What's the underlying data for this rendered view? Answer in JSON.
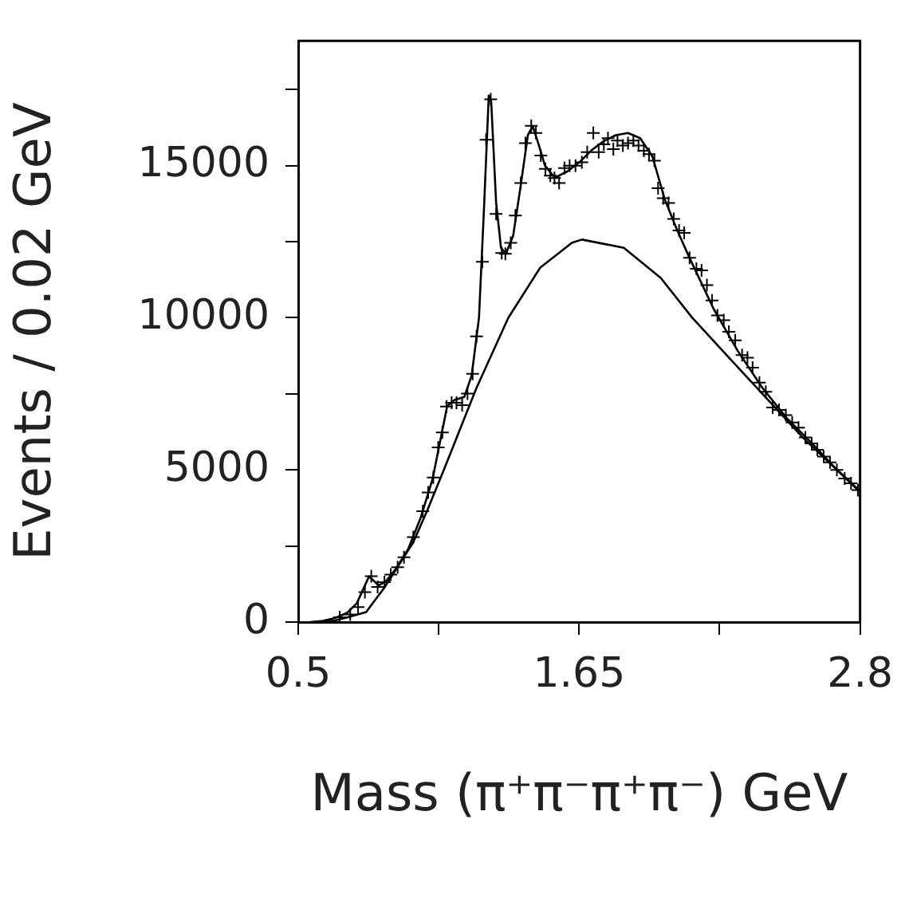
{
  "chart_data": {
    "type": "line",
    "xlabel": "Mass (π⁺π⁻π⁺π⁻) GeV",
    "ylabel": "Events / 0.02 GeV",
    "xlim": [
      0.5,
      2.8
    ],
    "ylim": [
      0,
      19100
    ],
    "xticks": [
      0.5,
      {
        "value": 1.075,
        "label": null
      },
      1.65,
      {
        "value": 2.225,
        "label": null
      },
      2.8
    ],
    "yticks": [
      0,
      {
        "value": 2500,
        "label": null
      },
      5000,
      {
        "value": 7500,
        "label": null
      },
      10000,
      {
        "value": 12500,
        "label": null
      },
      15000,
      {
        "value": 17500,
        "label": null
      }
    ],
    "grid": false,
    "legend": false,
    "series": [
      {
        "type": "scatter",
        "marker": "cross",
        "color": "#000000",
        "x": [
          0.67,
          0.713,
          0.745,
          0.773,
          0.799,
          0.825,
          0.853,
          0.879,
          0.907,
          0.933,
          0.971,
          1.01,
          1.032,
          1.053,
          1.073,
          1.09,
          1.107,
          1.128,
          1.148,
          1.171,
          1.193,
          1.214,
          1.23,
          1.254,
          1.269,
          1.288,
          1.31,
          1.333,
          1.348,
          1.37,
          1.389,
          1.411,
          1.43,
          1.454,
          1.473,
          1.493,
          1.512,
          1.532,
          1.549,
          1.568,
          1.59,
          1.611,
          1.635,
          1.661,
          1.683,
          1.708,
          1.73,
          1.751,
          1.768,
          1.79,
          1.807,
          1.829,
          1.85,
          1.872,
          1.893,
          1.915,
          1.936,
          1.958,
          1.973,
          1.994,
          2.016,
          2.037,
          2.059,
          2.08,
          2.102,
          2.13,
          2.151,
          2.173,
          2.194,
          2.216,
          2.242,
          2.263,
          2.289,
          2.317,
          2.339,
          2.36,
          2.388,
          2.414,
          2.442,
          2.468,
          2.496,
          2.522,
          2.548,
          2.576,
          2.602,
          2.625,
          2.651,
          2.677,
          2.705,
          2.737,
          2.763,
          2.791
        ],
        "values": [
          160,
          250,
          490,
          980,
          1510,
          1150,
          1310,
          1560,
          1800,
          2130,
          2790,
          3640,
          4260,
          4750,
          5740,
          6230,
          7080,
          7210,
          7210,
          7130,
          7510,
          8160,
          9390,
          11840,
          15850,
          17180,
          13410,
          12130,
          12100,
          12460,
          13360,
          14430,
          15740,
          16310,
          16070,
          15330,
          14890,
          14670,
          14590,
          14430,
          14920,
          15000,
          15000,
          15110,
          15440,
          16070,
          15440,
          15700,
          15900,
          15540,
          15820,
          15660,
          15740,
          15820,
          15660,
          15490,
          15380,
          15160,
          14260,
          13930,
          13770,
          13250,
          12870,
          12790,
          11970,
          11610,
          11560,
          11070,
          10570,
          10080,
          9920,
          9540,
          9260,
          8770,
          8690,
          8360,
          7870,
          7570,
          7050,
          6970,
          6800,
          6560,
          6390,
          6070,
          5870,
          5660,
          5440,
          5250,
          5000,
          4720,
          4560,
          4340
        ]
      },
      {
        "type": "line",
        "color": "#000000",
        "x": [
          0.55,
          0.6,
          0.65,
          0.7,
          0.74,
          0.77,
          0.79,
          0.81,
          0.83,
          0.86,
          0.9,
          0.95,
          1.0,
          1.05,
          1.09,
          1.11,
          1.14,
          1.18,
          1.21,
          1.24,
          1.26,
          1.28,
          1.29,
          1.31,
          1.33,
          1.35,
          1.38,
          1.41,
          1.44,
          1.46,
          1.48,
          1.51,
          1.55,
          1.6,
          1.65,
          1.7,
          1.75,
          1.8,
          1.85,
          1.9,
          1.95,
          2.0,
          2.05,
          2.1,
          2.2,
          2.3,
          2.4,
          2.5,
          2.6,
          2.7,
          2.8
        ],
        "values": [
          0,
          40,
          130,
          300,
          620,
          1150,
          1500,
          1350,
          1200,
          1350,
          1750,
          2400,
          3400,
          4700,
          6300,
          7100,
          7300,
          7400,
          8100,
          10000,
          13500,
          17300,
          17100,
          13800,
          12300,
          12100,
          12700,
          14300,
          16000,
          16300,
          15800,
          15000,
          14600,
          14800,
          15100,
          15500,
          15800,
          16000,
          16070,
          15900,
          15300,
          13900,
          12900,
          12000,
          10300,
          8900,
          7700,
          6700,
          5900,
          5050,
          4300
        ]
      },
      {
        "type": "line",
        "color": "#000000",
        "x": [
          0.584,
          0.65,
          0.7,
          0.778,
          0.85,
          0.971,
          1.03,
          1.1,
          1.23,
          1.36,
          1.49,
          1.62,
          1.661,
          1.833,
          1.984,
          2.113,
          2.263,
          2.414,
          2.565,
          2.694,
          2.791
        ],
        "values": [
          0,
          50,
          150,
          330,
          1100,
          2620,
          3700,
          5080,
          7700,
          10000,
          11640,
          12460,
          12570,
          12300,
          11310,
          10000,
          8690,
          7380,
          6070,
          5080,
          4340
        ]
      }
    ]
  }
}
